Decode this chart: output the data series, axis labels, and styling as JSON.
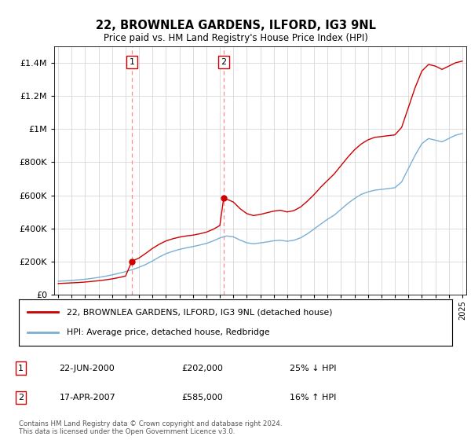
{
  "title": "22, BROWNLEA GARDENS, ILFORD, IG3 9NL",
  "subtitle": "Price paid vs. HM Land Registry's House Price Index (HPI)",
  "legend_label_red": "22, BROWNLEA GARDENS, ILFORD, IG3 9NL (detached house)",
  "legend_label_blue": "HPI: Average price, detached house, Redbridge",
  "transaction1_date": "22-JUN-2000",
  "transaction1_price": "£202,000",
  "transaction1_hpi": "25% ↓ HPI",
  "transaction2_date": "17-APR-2007",
  "transaction2_price": "£585,000",
  "transaction2_hpi": "16% ↑ HPI",
  "footer": "Contains HM Land Registry data © Crown copyright and database right 2024.\nThis data is licensed under the Open Government Licence v3.0.",
  "red_color": "#cc0000",
  "blue_color": "#7aafd4",
  "vline_color": "#ff8888",
  "marker1_x": 2000.47,
  "marker1_y": 202000,
  "marker2_x": 2007.29,
  "marker2_y": 585000,
  "ylim_max": 1500000,
  "hpi_x": [
    1995,
    1995.5,
    1996,
    1996.5,
    1997,
    1997.5,
    1998,
    1998.5,
    1999,
    1999.5,
    2000,
    2000.5,
    2001,
    2001.5,
    2002,
    2002.5,
    2003,
    2003.5,
    2004,
    2004.5,
    2005,
    2005.5,
    2006,
    2006.5,
    2007,
    2007.5,
    2008,
    2008.5,
    2009,
    2009.5,
    2010,
    2010.5,
    2011,
    2011.5,
    2012,
    2012.5,
    2013,
    2013.5,
    2014,
    2014.5,
    2015,
    2015.5,
    2016,
    2016.5,
    2017,
    2017.5,
    2018,
    2018.5,
    2019,
    2019.5,
    2020,
    2020.5,
    2021,
    2021.5,
    2022,
    2022.5,
    2023,
    2023.5,
    2024,
    2024.5,
    2025
  ],
  "hpi_y": [
    82000,
    84000,
    87000,
    90000,
    94000,
    99000,
    105000,
    112000,
    120000,
    130000,
    140000,
    152000,
    166000,
    183000,
    204000,
    228000,
    248000,
    262000,
    274000,
    283000,
    291000,
    300000,
    310000,
    325000,
    343000,
    355000,
    350000,
    330000,
    314000,
    308000,
    313000,
    319000,
    326000,
    329000,
    323000,
    329000,
    344000,
    368000,
    397000,
    427000,
    456000,
    481000,
    516000,
    551000,
    581000,
    606000,
    621000,
    631000,
    636000,
    641000,
    646000,
    681000,
    762000,
    842000,
    912000,
    943000,
    933000,
    923000,
    943000,
    963000,
    973000
  ],
  "red_x": [
    1995,
    1995.5,
    1996,
    1996.5,
    1997,
    1997.5,
    1998,
    1998.5,
    1999,
    1999.5,
    2000,
    2000.47,
    2001,
    2001.5,
    2002,
    2002.5,
    2003,
    2003.5,
    2004,
    2004.5,
    2005,
    2005.5,
    2006,
    2006.5,
    2007,
    2007.29,
    2008,
    2008.5,
    2009,
    2009.5,
    2010,
    2010.5,
    2011,
    2011.5,
    2012,
    2012.5,
    2013,
    2013.5,
    2014,
    2014.5,
    2015,
    2015.5,
    2016,
    2016.5,
    2017,
    2017.5,
    2018,
    2018.5,
    2019,
    2019.5,
    2020,
    2020.5,
    2021,
    2021.5,
    2022,
    2022.5,
    2023,
    2023.5,
    2024,
    2024.5,
    2025
  ],
  "red_y": [
    68000,
    70000,
    72000,
    74000,
    77000,
    81000,
    85000,
    90000,
    96000,
    104000,
    113000,
    202000,
    222000,
    250000,
    280000,
    305000,
    325000,
    338000,
    348000,
    355000,
    360000,
    368000,
    378000,
    395000,
    418000,
    585000,
    560000,
    520000,
    490000,
    478000,
    485000,
    495000,
    505000,
    510000,
    500000,
    508000,
    530000,
    565000,
    605000,
    650000,
    690000,
    730000,
    780000,
    830000,
    875000,
    910000,
    935000,
    950000,
    955000,
    960000,
    965000,
    1010000,
    1130000,
    1250000,
    1350000,
    1390000,
    1380000,
    1360000,
    1380000,
    1400000,
    1410000
  ],
  "xticks": [
    1995,
    1996,
    1997,
    1998,
    1999,
    2000,
    2001,
    2002,
    2003,
    2004,
    2005,
    2006,
    2007,
    2008,
    2009,
    2010,
    2011,
    2012,
    2013,
    2014,
    2015,
    2016,
    2017,
    2018,
    2019,
    2020,
    2021,
    2022,
    2023,
    2024,
    2025
  ],
  "yticks": [
    0,
    200000,
    400000,
    600000,
    800000,
    1000000,
    1200000,
    1400000
  ]
}
